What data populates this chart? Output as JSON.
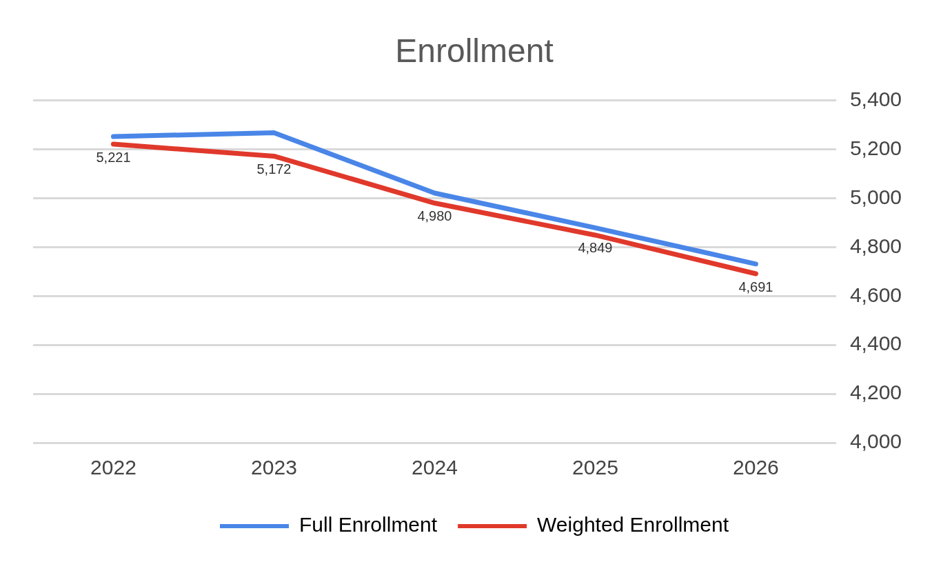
{
  "chart_data": {
    "type": "line",
    "title": "Enrollment",
    "categories": [
      "2022",
      "2023",
      "2024",
      "2025",
      "2026"
    ],
    "series": [
      {
        "name": "Full Enrollment",
        "color": "#4a86e8",
        "values": [
          5252,
          5268,
          5021,
          4879,
          4731
        ]
      },
      {
        "name": "Weighted Enrollment",
        "color": "#e0392b",
        "values": [
          5221,
          5172,
          4980,
          4849,
          4691
        ],
        "value_labels": [
          "5,221",
          "5,172",
          "4,980",
          "4,849",
          "4,691"
        ]
      }
    ],
    "ylim": [
      4000,
      5400
    ],
    "yticks": [
      {
        "value": 4000,
        "label": "4,000"
      },
      {
        "value": 4200,
        "label": "4,200"
      },
      {
        "value": 4400,
        "label": "4,400"
      },
      {
        "value": 4600,
        "label": "4,600"
      },
      {
        "value": 4800,
        "label": "4,800"
      },
      {
        "value": 5000,
        "label": "5,000"
      },
      {
        "value": 5200,
        "label": "5,200"
      },
      {
        "value": 5400,
        "label": "5,400"
      }
    ],
    "grid": "y",
    "legend": "bottom",
    "marker": "none",
    "line_style": "solid"
  }
}
